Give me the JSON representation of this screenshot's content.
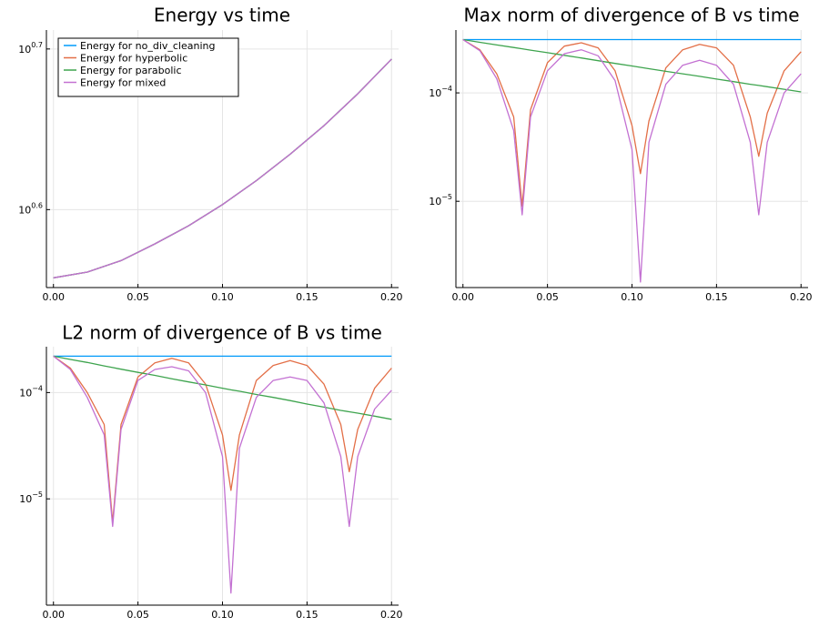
{
  "chart_data": [
    {
      "type": "line",
      "title": "Energy vs time",
      "xlabel": "",
      "ylabel": "",
      "y_scale": "log10",
      "xlim": [
        0.0,
        0.2
      ],
      "ylim": [
        3.56,
        5.15
      ],
      "grid": true,
      "legend_position": "top-left",
      "x_ticks": [
        "0.00",
        "0.05",
        "0.10",
        "0.15",
        "0.20"
      ],
      "y_ticks": [
        {
          "value": 3.981,
          "base": "10",
          "exponent": "0.6"
        },
        {
          "value": 5.012,
          "base": "10",
          "exponent": "0.7"
        }
      ],
      "x": [
        0.0,
        0.02,
        0.04,
        0.06,
        0.08,
        0.1,
        0.12,
        0.14,
        0.16,
        0.18,
        0.2
      ],
      "series": [
        {
          "name": "Energy for no_div_cleaning",
          "color": "#009AFA",
          "values": [
            3.61,
            3.64,
            3.7,
            3.79,
            3.89,
            4.01,
            4.15,
            4.31,
            4.49,
            4.7,
            4.94
          ]
        },
        {
          "name": "Energy for hyperbolic",
          "color": "#E36F47",
          "values": [
            3.61,
            3.64,
            3.7,
            3.79,
            3.89,
            4.01,
            4.15,
            4.31,
            4.49,
            4.7,
            4.94
          ]
        },
        {
          "name": "Energy for parabolic",
          "color": "#3EA44E",
          "values": [
            3.61,
            3.64,
            3.7,
            3.79,
            3.89,
            4.01,
            4.15,
            4.31,
            4.49,
            4.7,
            4.94
          ]
        },
        {
          "name": "Energy for mixed",
          "color": "#C371D2",
          "values": [
            3.61,
            3.64,
            3.7,
            3.79,
            3.89,
            4.01,
            4.15,
            4.31,
            4.49,
            4.7,
            4.94
          ]
        }
      ]
    },
    {
      "type": "line",
      "title": "Max norm of divergence of B vs time",
      "xlabel": "",
      "ylabel": "",
      "y_scale": "log10",
      "xlim": [
        0.0,
        0.2
      ],
      "ylim": [
        1.6e-06,
        0.00038
      ],
      "grid": true,
      "x_ticks": [
        "0.00",
        "0.05",
        "0.10",
        "0.15",
        "0.20"
      ],
      "y_ticks": [
        {
          "value": 1e-05,
          "base": "10",
          "exponent": "−5"
        },
        {
          "value": 0.0001,
          "base": "10",
          "exponent": "−4"
        }
      ],
      "x": [
        0.0,
        0.01,
        0.02,
        0.03,
        0.035,
        0.04,
        0.05,
        0.06,
        0.07,
        0.08,
        0.09,
        0.1,
        0.105,
        0.11,
        0.12,
        0.13,
        0.14,
        0.15,
        0.16,
        0.17,
        0.175,
        0.18,
        0.19,
        0.2
      ],
      "series": [
        {
          "name": "",
          "color": "#009AFA",
          "values": [
            0.00031,
            0.00031,
            0.00031,
            0.00031,
            0.00031,
            0.00031,
            0.00031,
            0.00031,
            0.00031,
            0.00031,
            0.00031,
            0.00031,
            0.00031,
            0.00031,
            0.00031,
            0.00031,
            0.00031,
            0.00031,
            0.00031,
            0.00031,
            0.00031,
            0.00031,
            0.00031,
            0.00031
          ]
        },
        {
          "name": "",
          "color": "#E36F47",
          "values": [
            0.00031,
            0.00025,
            0.00015,
            6e-05,
            9e-06,
            7e-05,
            0.00019,
            0.00027,
            0.00029,
            0.00026,
            0.00016,
            5e-05,
            1.8e-05,
            5.5e-05,
            0.00017,
            0.00025,
            0.00028,
            0.00026,
            0.00018,
            6e-05,
            2.6e-05,
            6.5e-05,
            0.00016,
            0.00024
          ]
        },
        {
          "name": "",
          "color": "#3EA44E",
          "values": [
            0.00031,
            0.000293,
            0.000277,
            0.000262,
            0.000255,
            0.000248,
            0.000235,
            0.000222,
            0.00021,
            0.000198,
            0.000187,
            0.000177,
            0.000172,
            0.000167,
            0.000158,
            0.00015,
            0.000142,
            0.000134,
            0.000127,
            0.00012,
            0.000117,
            0.000114,
            0.000108,
            0.000102
          ]
        },
        {
          "name": "",
          "color": "#C371D2",
          "values": [
            0.00031,
            0.000245,
            0.000135,
            4.5e-05,
            7.5e-06,
            6e-05,
            0.00016,
            0.00023,
            0.00025,
            0.00022,
            0.00013,
            3e-05,
            1.8e-06,
            3.5e-05,
            0.00012,
            0.00018,
            0.0002,
            0.00018,
            0.00012,
            3.5e-05,
            7.5e-06,
            3.5e-05,
            0.0001,
            0.00015
          ]
        }
      ]
    },
    {
      "type": "line",
      "title": "L2 norm of divergence of B vs time",
      "xlabel": "",
      "ylabel": "",
      "y_scale": "log10",
      "xlim": [
        0.0,
        0.2
      ],
      "ylim": [
        1e-06,
        0.00027
      ],
      "grid": true,
      "x_ticks": [
        "0.00",
        "0.05",
        "0.10",
        "0.15",
        "0.20"
      ],
      "y_ticks": [
        {
          "value": 1e-05,
          "base": "10",
          "exponent": "−5"
        },
        {
          "value": 0.0001,
          "base": "10",
          "exponent": "−4"
        }
      ],
      "x": [
        0.0,
        0.01,
        0.02,
        0.03,
        0.035,
        0.04,
        0.05,
        0.06,
        0.07,
        0.08,
        0.09,
        0.1,
        0.105,
        0.11,
        0.12,
        0.13,
        0.14,
        0.15,
        0.16,
        0.17,
        0.175,
        0.18,
        0.19,
        0.2
      ],
      "series": [
        {
          "name": "",
          "color": "#009AFA",
          "values": [
            0.00022,
            0.00022,
            0.00022,
            0.00022,
            0.00022,
            0.00022,
            0.00022,
            0.00022,
            0.00022,
            0.00022,
            0.00022,
            0.00022,
            0.00022,
            0.00022,
            0.00022,
            0.00022,
            0.00022,
            0.00022,
            0.00022,
            0.00022,
            0.00022,
            0.00022,
            0.00022,
            0.00022
          ]
        },
        {
          "name": "",
          "color": "#E36F47",
          "values": [
            0.00022,
            0.00017,
            0.0001,
            5e-05,
            6e-06,
            5e-05,
            0.00014,
            0.00019,
            0.00021,
            0.00019,
            0.00012,
            4e-05,
            1.2e-05,
            4e-05,
            0.00013,
            0.00018,
            0.0002,
            0.00018,
            0.00012,
            5e-05,
            1.8e-05,
            4.5e-05,
            0.00011,
            0.00017
          ]
        },
        {
          "name": "",
          "color": "#3EA44E",
          "values": [
            0.00022,
            0.000205,
            0.000192,
            0.000178,
            0.000172,
            0.000166,
            0.000155,
            0.000145,
            0.000135,
            0.000126,
            0.000118,
            0.00011,
            0.000106,
            0.000103,
            9.6e-05,
            9e-05,
            8.4e-05,
            7.8e-05,
            7.3e-05,
            6.8e-05,
            6.6e-05,
            6.4e-05,
            6e-05,
            5.6e-05
          ]
        },
        {
          "name": "",
          "color": "#C371D2",
          "values": [
            0.00022,
            0.000165,
            9e-05,
            4e-05,
            5.5e-06,
            4.5e-05,
            0.00013,
            0.000165,
            0.000175,
            0.00016,
            0.0001,
            2.5e-05,
            1.3e-06,
            3e-05,
            9e-05,
            0.00013,
            0.00014,
            0.00013,
            8e-05,
            2.5e-05,
            5.5e-06,
            2.5e-05,
            7e-05,
            0.000105
          ]
        }
      ]
    }
  ]
}
